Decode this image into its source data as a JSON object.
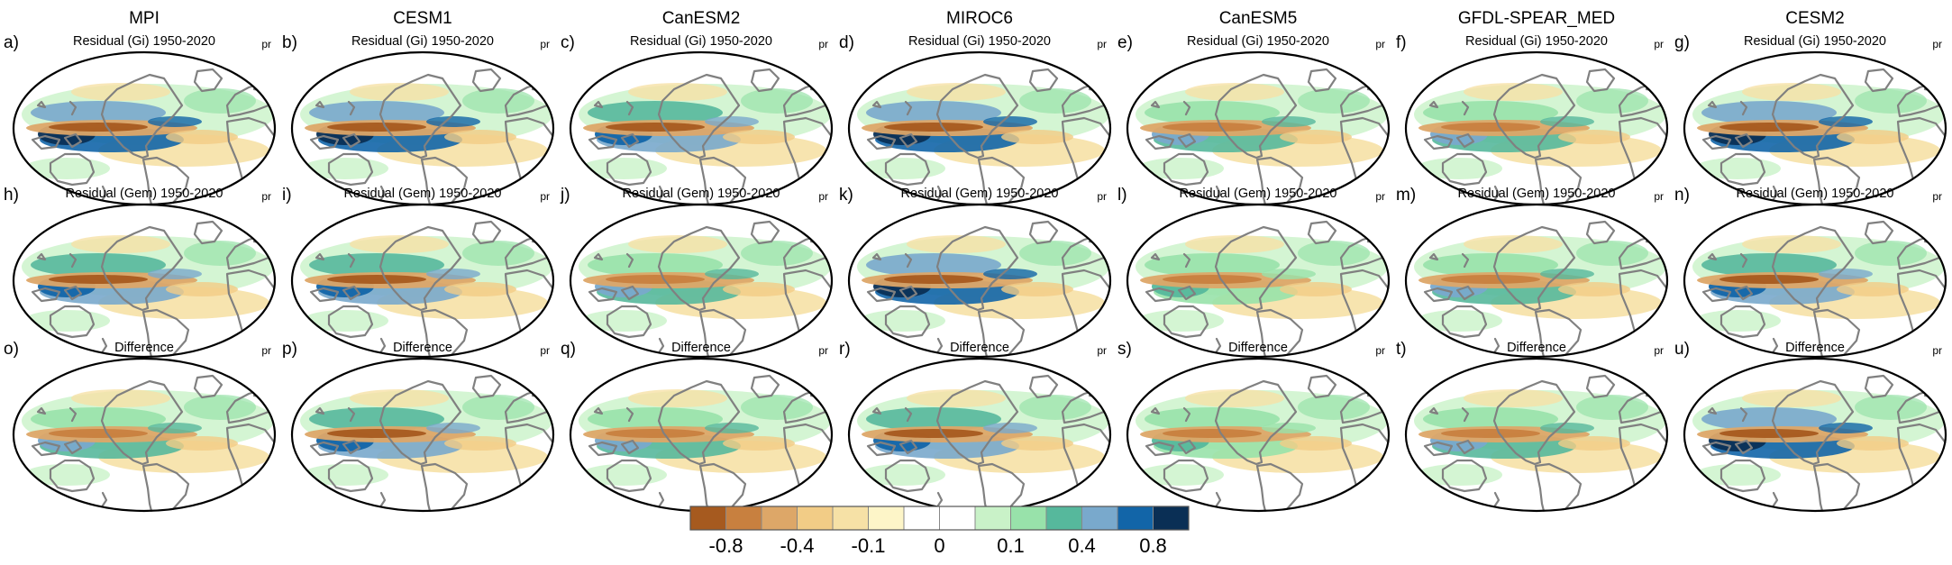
{
  "figure": {
    "models": [
      "MPI",
      "CESM1",
      "CanESM2",
      "MIROC6",
      "CanESM5",
      "GFDL-SPEAR_MED",
      "CESM2"
    ],
    "row_titles": [
      "Residual (Gi) 1950-2020",
      "Residual (Gem) 1950-2020",
      "Difference"
    ],
    "panel_letters": [
      "a)",
      "b)",
      "c)",
      "d)",
      "e)",
      "f)",
      "g)",
      "h)",
      "i)",
      "j)",
      "k)",
      "l)",
      "m)",
      "n)",
      "o)",
      "p)",
      "q)",
      "r)",
      "s)",
      "t)",
      "u)"
    ],
    "variable": "pr",
    "colorbar": {
      "colors": [
        "#a65a1f",
        "#c8803f",
        "#dda768",
        "#f2cc86",
        "#f6e1a6",
        "#fdf5c8",
        "#ffffff",
        "#ffffff",
        "#c9f2c8",
        "#98e2aa",
        "#56b89c",
        "#79a9cc",
        "#1265a8",
        "#0a2f55"
      ],
      "tick_labels": [
        "-0.8",
        "-0.4",
        "-0.1",
        "0",
        "0.1",
        "0.4",
        "0.8"
      ]
    },
    "anomaly_intensity": [
      [
        0.9,
        1.0,
        0.8,
        1.0,
        0.55,
        0.6,
        1.0
      ],
      [
        0.7,
        0.85,
        0.55,
        0.9,
        0.45,
        0.5,
        0.85
      ],
      [
        0.6,
        0.75,
        0.5,
        0.8,
        0.45,
        0.6,
        0.9
      ]
    ]
  }
}
